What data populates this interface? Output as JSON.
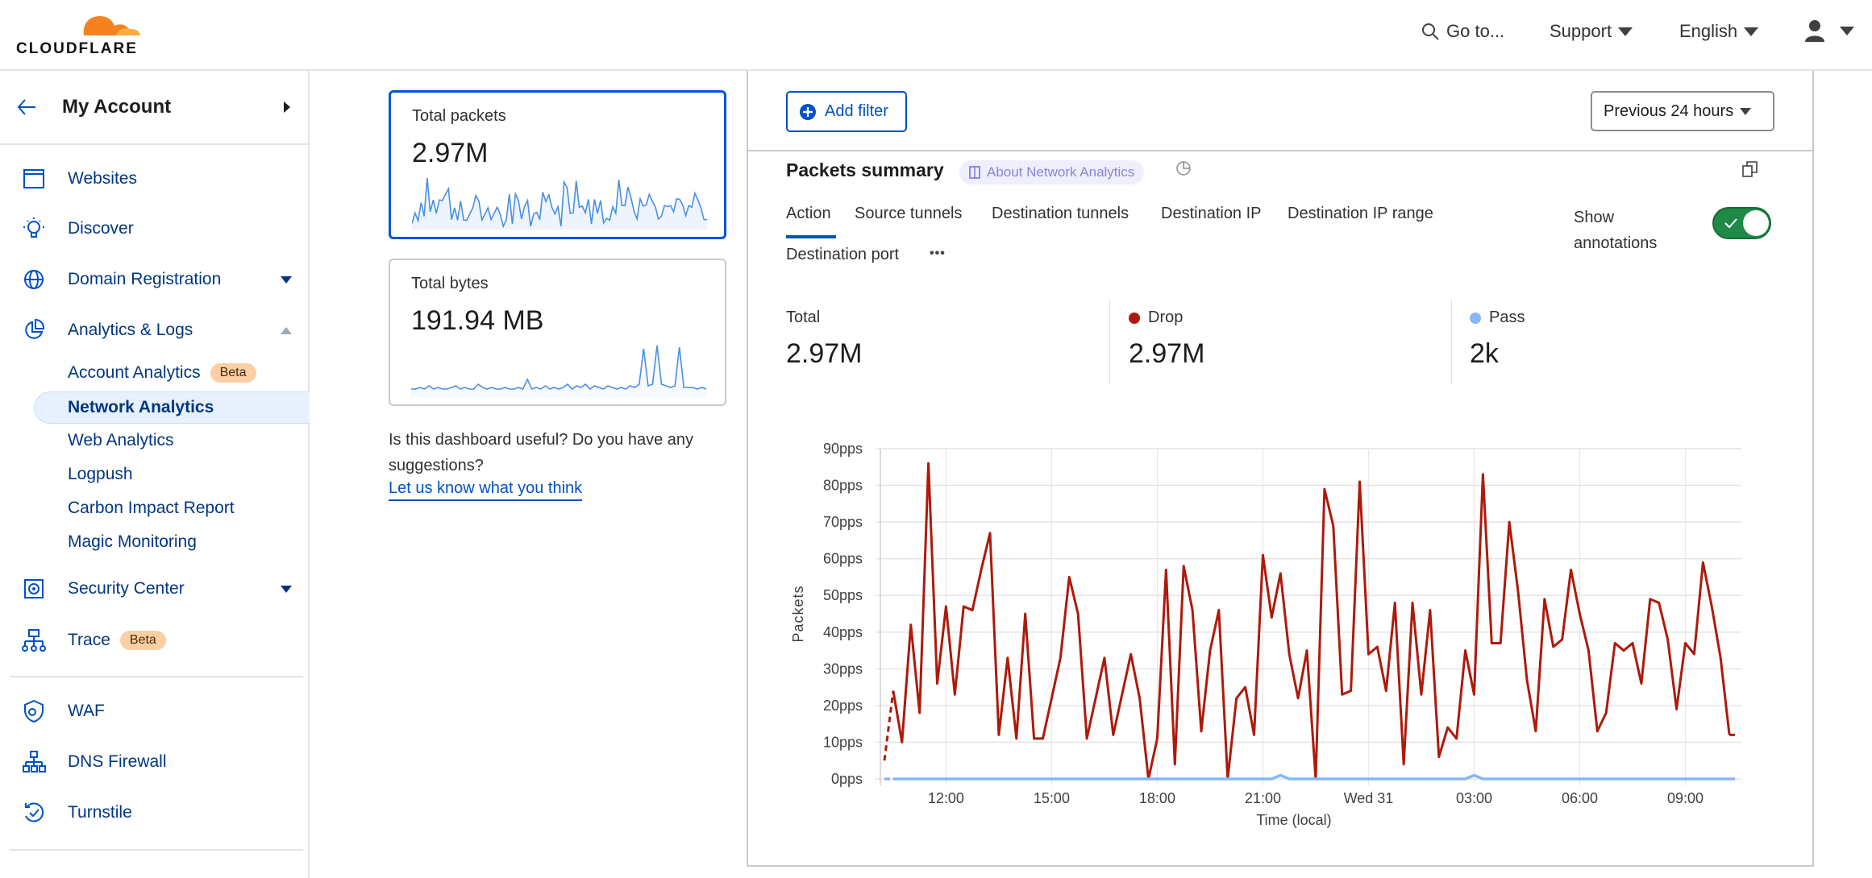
{
  "brand": {
    "name": "CLOUDFLARE",
    "logo_colors": [
      "#f6821f",
      "#fbad41"
    ]
  },
  "header": {
    "goto_label": "Go to...",
    "support_label": "Support",
    "language_label": "English",
    "icons": [
      "search-icon",
      "user-icon",
      "caret-down-icon"
    ]
  },
  "sidebar": {
    "account_label": "My Account",
    "items": [
      {
        "label": "Websites",
        "icon": "browser-window-icon"
      },
      {
        "label": "Discover",
        "icon": "lightbulb-icon"
      },
      {
        "label": "Domain Registration",
        "icon": "globe-icon",
        "expandable": true
      },
      {
        "label": "Analytics & Logs",
        "icon": "pie-chart-icon",
        "expanded": true
      },
      {
        "label": "Security Center",
        "icon": "security-center-icon",
        "expandable": true
      },
      {
        "label": "Trace",
        "icon": "hierarchy-icon",
        "badge": "Beta"
      },
      {
        "label": "WAF",
        "icon": "shield-gear-icon"
      },
      {
        "label": "DNS Firewall",
        "icon": "network-icon"
      },
      {
        "label": "Turnstile",
        "icon": "turnstile-icon"
      }
    ],
    "subitems": [
      {
        "label": "Account Analytics",
        "badge": "Beta"
      },
      {
        "label": "Network Analytics",
        "active": true
      },
      {
        "label": "Web Analytics"
      },
      {
        "label": "Logpush"
      },
      {
        "label": "Carbon Impact Report"
      },
      {
        "label": "Magic Monitoring"
      }
    ]
  },
  "cards": [
    {
      "title": "Total packets",
      "value": "2.97M",
      "selected": true
    },
    {
      "title": "Total bytes",
      "value": "191.94 MB",
      "selected": false
    }
  ],
  "sparkline_bytes": [
    3,
    3,
    4,
    3,
    5,
    3,
    4,
    3,
    3,
    4,
    5,
    3,
    4,
    3,
    3,
    6,
    4,
    3,
    4,
    3,
    3,
    4,
    3,
    3,
    4,
    3,
    9,
    3,
    4,
    3,
    5,
    3,
    4,
    3,
    4,
    6,
    3,
    5,
    4,
    6,
    3,
    5,
    4,
    3,
    5,
    4,
    3,
    4,
    3,
    5,
    4,
    6,
    28,
    5,
    6,
    30,
    6,
    5,
    4,
    5,
    29,
    4,
    4,
    4,
    3,
    4,
    3
  ],
  "feedback": {
    "question": "Is this dashboard useful? Do you have any suggestions?",
    "link": "Let us know what you think"
  },
  "toolbar": {
    "add_filter_label": "Add filter",
    "time_range": "Previous 24 hours"
  },
  "summary": {
    "title": "Packets summary",
    "about_label": "About Network Analytics",
    "tabs": [
      "Action",
      "Source tunnels",
      "Destination tunnels",
      "Destination IP",
      "Destination IP range",
      "Destination port"
    ],
    "active_tab": "Action",
    "more_label": "•••",
    "annotations_label": "Show annotations",
    "annotations_on": true,
    "stats": [
      {
        "label": "Total",
        "value": "2.97M"
      },
      {
        "label": "Drop",
        "value": "2.97M",
        "color": "#ad1a0c"
      },
      {
        "label": "Pass",
        "value": "2k",
        "color": "#86b7f7"
      }
    ]
  },
  "chart_data": {
    "type": "line",
    "ylabel": "Packets",
    "xlabel": "Time (local)",
    "ylim": [
      0,
      90
    ],
    "yticks": [
      "0pps",
      "10pps",
      "20pps",
      "30pps",
      "40pps",
      "50pps",
      "60pps",
      "70pps",
      "80pps",
      "90pps"
    ],
    "xticks": [
      {
        "time": "12:00",
        "label": "12:00"
      },
      {
        "time": "15:00",
        "label": "15:00"
      },
      {
        "time": "18:00",
        "label": "18:00"
      },
      {
        "time": "21:00",
        "label": "21:00"
      },
      {
        "time": "00:00",
        "label": "Wed 31"
      },
      {
        "time": "03:00",
        "label": "03:00"
      },
      {
        "time": "06:00",
        "label": "06:00"
      },
      {
        "time": "09:00",
        "label": "09:00"
      }
    ],
    "grid": true,
    "x": [
      "10:15",
      "10:30",
      "10:45",
      "11:00",
      "11:15",
      "11:30",
      "11:45",
      "12:00",
      "12:15",
      "12:30",
      "12:45",
      "13:00",
      "13:15",
      "13:30",
      "13:45",
      "14:00",
      "14:15",
      "14:30",
      "14:45",
      "15:00",
      "15:15",
      "15:30",
      "15:45",
      "16:00",
      "16:15",
      "16:30",
      "16:45",
      "17:00",
      "17:15",
      "17:30",
      "17:45",
      "18:00",
      "18:15",
      "18:30",
      "18:45",
      "19:00",
      "19:15",
      "19:30",
      "19:45",
      "20:00",
      "20:15",
      "20:30",
      "20:45",
      "21:00",
      "21:15",
      "21:30",
      "21:45",
      "22:00",
      "22:15",
      "22:30",
      "22:45",
      "23:00",
      "23:15",
      "23:30",
      "23:45",
      "00:00",
      "00:15",
      "00:30",
      "00:45",
      "01:00",
      "01:15",
      "01:30",
      "01:45",
      "02:00",
      "02:15",
      "02:30",
      "02:45",
      "03:00",
      "03:15",
      "03:30",
      "03:45",
      "04:00",
      "04:15",
      "04:30",
      "04:45",
      "05:00",
      "05:15",
      "05:30",
      "05:45",
      "06:00",
      "06:15",
      "06:30",
      "06:45",
      "07:00",
      "07:15",
      "07:30",
      "07:45",
      "08:00",
      "08:15",
      "08:30",
      "08:45",
      "09:00",
      "09:15",
      "09:30",
      "09:45",
      "10:00",
      "10:15",
      "10:30"
    ],
    "series": [
      {
        "name": "Drop",
        "color": "#ad1a0c",
        "values": [
          5,
          24,
          10,
          42,
          18,
          86,
          26,
          47,
          23,
          47,
          46,
          57,
          67,
          12,
          33,
          11,
          45,
          11,
          11,
          22,
          33,
          55,
          45,
          11,
          22,
          33,
          12,
          23,
          34,
          22,
          0,
          11,
          57,
          4,
          58,
          46,
          13,
          35,
          46,
          0,
          22,
          25,
          12,
          61,
          44,
          56,
          34,
          22,
          35,
          0,
          79,
          69,
          23,
          24,
          81,
          34,
          36,
          24,
          48,
          4,
          48,
          23,
          46,
          6,
          14,
          11,
          35,
          23,
          83,
          37,
          37,
          70,
          51,
          27,
          13,
          49,
          36,
          38,
          57,
          45,
          35,
          13,
          18,
          37,
          35,
          37,
          26,
          49,
          48,
          38,
          19,
          37,
          34,
          59,
          47,
          33,
          12,
          12
        ]
      },
      {
        "name": "Pass",
        "color": "#86b7f7",
        "values": [
          0,
          0,
          0,
          0,
          0,
          0,
          0,
          0,
          0,
          0,
          0,
          0,
          0,
          0,
          0,
          0,
          0,
          0,
          0,
          0,
          0,
          0,
          0,
          0,
          0,
          0,
          0,
          0,
          0,
          0,
          0,
          0,
          0,
          0,
          0,
          0,
          0,
          0,
          0,
          0,
          0,
          0,
          0,
          0,
          0,
          1,
          0,
          0,
          0,
          0,
          0,
          0,
          0,
          0,
          0,
          0,
          0,
          0,
          0,
          0,
          0,
          0,
          0,
          0,
          0,
          0,
          0,
          1,
          0,
          0,
          0,
          0,
          0,
          0,
          0,
          0,
          0,
          0,
          0,
          0,
          0,
          0,
          0,
          0,
          0,
          0,
          0,
          0,
          0,
          0,
          0,
          0,
          0,
          0,
          0,
          0,
          0,
          0
        ]
      }
    ]
  }
}
